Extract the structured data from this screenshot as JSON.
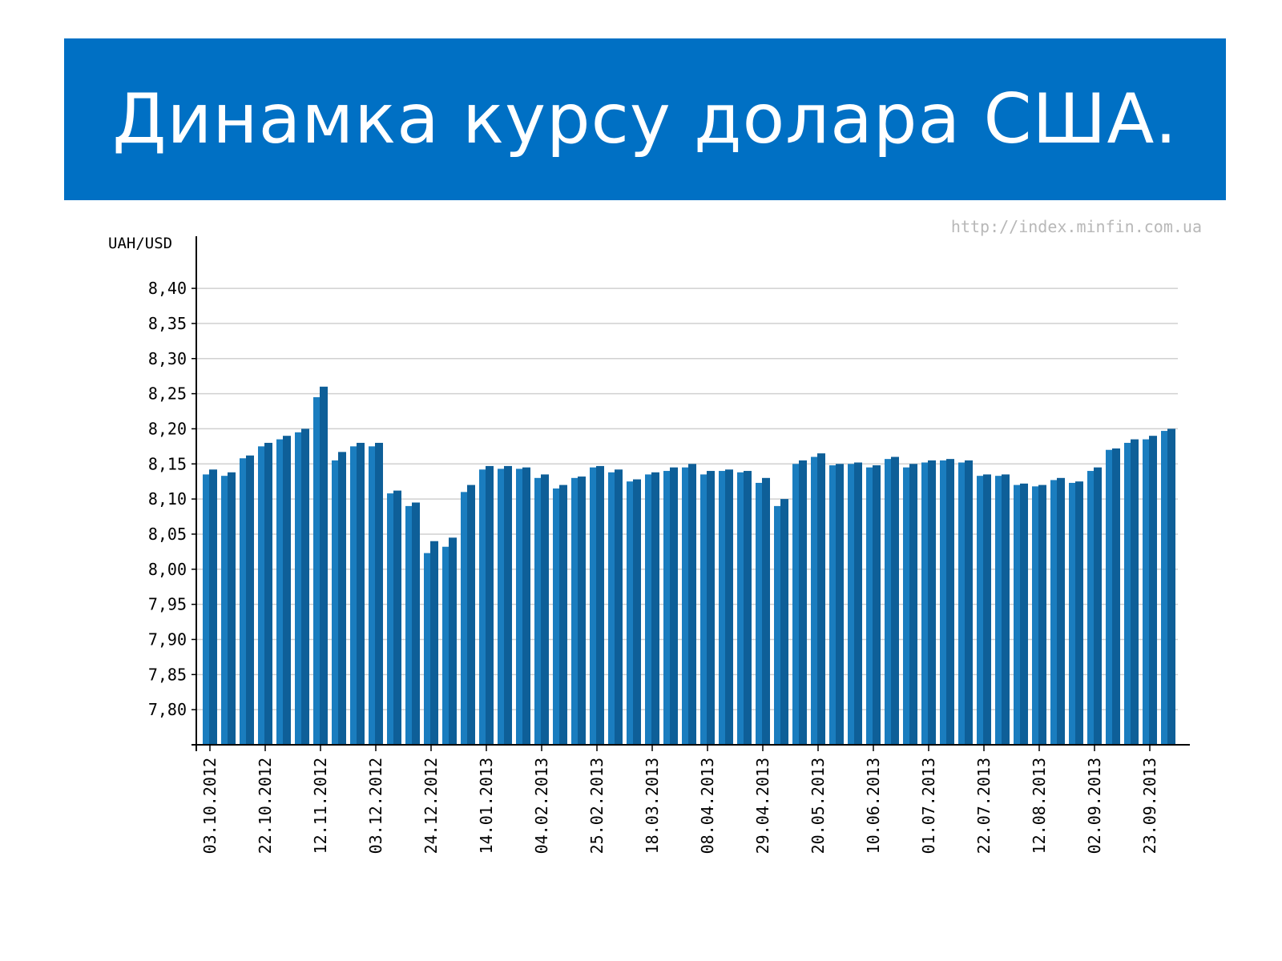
{
  "slide": {
    "title": "Динамка курсу долара США."
  },
  "colors": {
    "banner": "#0070c4",
    "bar_front": "#1a7dbf",
    "bar_back": "#0e5f98",
    "grid": "#d0d0d0",
    "axis": "#000000"
  },
  "chart_data": {
    "type": "bar",
    "ylabel": "UAH/USD",
    "source_watermark": "http://index.minfin.com.ua",
    "ylim": [
      7.75,
      8.44
    ],
    "yticks": [
      "8,40",
      "8,35",
      "8,30",
      "8,25",
      "8,20",
      "8,15",
      "8,10",
      "8,05",
      "8,00",
      "7,95",
      "7,90",
      "7,85",
      "7,80"
    ],
    "ytick_values": [
      8.4,
      8.35,
      8.3,
      8.25,
      8.2,
      8.15,
      8.1,
      8.05,
      8.0,
      7.95,
      7.9,
      7.85,
      7.8
    ],
    "grid": true,
    "xtick_labels": [
      "03.10.2012",
      "22.10.2012",
      "12.11.2012",
      "03.12.2012",
      "24.12.2012",
      "14.01.2013",
      "04.02.2013",
      "25.02.2013",
      "18.03.2013",
      "08.04.2013",
      "29.04.2013",
      "20.05.2013",
      "10.06.2013",
      "01.07.2013",
      "22.07.2013",
      "12.08.2013",
      "02.09.2013",
      "23.09.2013"
    ],
    "xtick_bar_index": [
      0,
      6,
      12,
      18,
      24,
      30,
      36,
      42,
      48,
      54,
      60,
      66,
      72,
      78,
      84,
      90,
      96,
      102
    ],
    "values": [
      8.135,
      8.142,
      8.133,
      8.138,
      8.158,
      8.162,
      8.175,
      8.18,
      8.185,
      8.19,
      8.195,
      8.2,
      8.245,
      8.26,
      8.155,
      8.167,
      8.175,
      8.18,
      8.175,
      8.18,
      8.108,
      8.112,
      8.09,
      8.095,
      8.023,
      8.04,
      8.032,
      8.045,
      8.11,
      8.12,
      8.142,
      8.147,
      8.143,
      8.147,
      8.143,
      8.145,
      8.13,
      8.135,
      8.115,
      8.12,
      8.13,
      8.132,
      8.145,
      8.147,
      8.138,
      8.142,
      8.125,
      8.128,
      8.135,
      8.138,
      8.14,
      8.145,
      8.145,
      8.15,
      8.135,
      8.14,
      8.14,
      8.142,
      8.138,
      8.14,
      8.123,
      8.13,
      8.09,
      8.1,
      8.15,
      8.155,
      8.16,
      8.165,
      8.148,
      8.15,
      8.15,
      8.152,
      8.145,
      8.148,
      8.157,
      8.16,
      8.145,
      8.15,
      8.152,
      8.155,
      8.155,
      8.157,
      8.152,
      8.155,
      8.133,
      8.135,
      8.133,
      8.135,
      8.12,
      8.122,
      8.118,
      8.12,
      8.127,
      8.13,
      8.123,
      8.125,
      8.14,
      8.145,
      8.17,
      8.172,
      8.18,
      8.185,
      8.185,
      8.19,
      8.197,
      8.2
    ]
  }
}
